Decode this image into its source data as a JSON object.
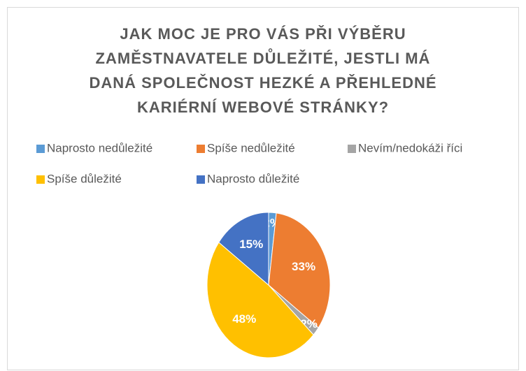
{
  "chart_data": {
    "type": "pie",
    "title": [
      "JAK MOC JE PRO VÁS PŘI VÝBĚRU",
      "ZAMĚSTNAVATELE DŮLEŽITÉ, JESTLI MÁ",
      "DANÁ SPOLEČNOST HEZKÉ A PŘEHLEDNÉ",
      "KARIÉRNÍ WEBOVÉ STRÁNKY?"
    ],
    "categories": [
      "Naprosto nedůležité",
      "Spíše nedůležité",
      "Nevím/nedokáži říci",
      "Spíše důležité",
      "Naprosto důležité"
    ],
    "values": [
      2,
      33,
      2,
      48,
      15
    ],
    "value_labels": [
      "2%",
      "33%",
      "2%",
      "48%",
      "15%"
    ],
    "colors": [
      "#5b9bd5",
      "#ed7d31",
      "#a5a5a5",
      "#ffc000",
      "#4472c4"
    ],
    "legend": "top"
  }
}
